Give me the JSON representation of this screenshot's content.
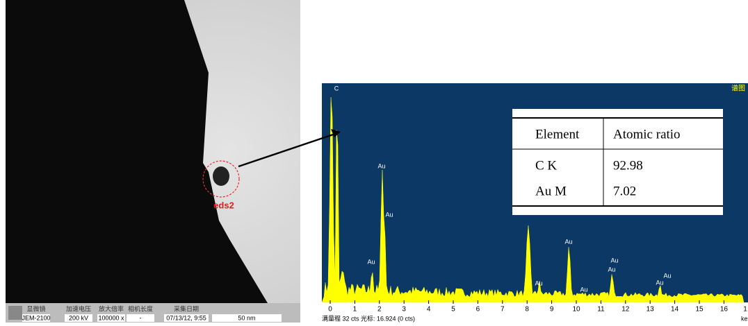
{
  "tem_image": {
    "label": "eds2",
    "info_bar": {
      "headers": [
        "显微镜",
        "加速电压",
        "放大倍率",
        "相机长度",
        "采集日期"
      ],
      "values": [
        "JEM-2100",
        "200 kV",
        "100000 x",
        "-",
        "07/13/12, 9:55"
      ],
      "scale_bar": "50 nm"
    }
  },
  "spectrum": {
    "panel_label": "谱图",
    "carbon_peak_label": "C",
    "peak_labels": [
      "Au",
      "Au",
      "Au",
      "Au",
      "Au",
      "Au",
      "Au",
      "Au",
      "Au",
      "Au"
    ],
    "xticks": [
      0,
      1,
      2,
      3,
      4,
      5,
      6,
      7,
      8,
      9,
      10,
      11,
      12,
      13,
      14,
      15,
      16,
      {
        "value": 17,
        "label": "1"
      }
    ],
    "x_unit": "ke",
    "footer": "满量程 32 cts 光标: 16.924 (0 cts)"
  },
  "table": {
    "header": [
      "Element",
      "Atomic ratio"
    ],
    "rows": [
      [
        "C K",
        "92.98"
      ],
      [
        "Au M",
        "7.02"
      ]
    ]
  }
}
